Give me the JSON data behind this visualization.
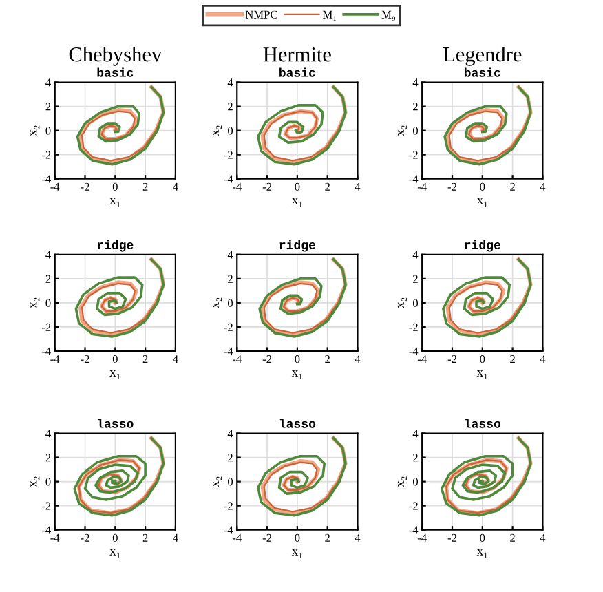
{
  "chart_data": [
    {
      "type": "line",
      "title": "Chebyshev",
      "subtitle": "basic",
      "xlabel": "x₁",
      "ylabel": "x₂",
      "xlim": [
        -4,
        4
      ],
      "ylim": [
        -4,
        4
      ],
      "xticks": [
        -4,
        -2,
        0,
        2,
        4
      ],
      "yticks": [
        -4,
        -2,
        0,
        2,
        4
      ],
      "grid": true,
      "legend": "top",
      "series": [
        {
          "name": "NMPC",
          "color": "#f4a582",
          "x": [
            2.4,
            3.0,
            3.2,
            2.7,
            1.9,
            0.9,
            -0.3,
            -1.5,
            -2.2,
            -2.3,
            -1.8,
            -0.9,
            0.2,
            1.0,
            1.4,
            1.2,
            0.7,
            0.0,
            -0.6,
            -0.9,
            -0.7,
            -0.3,
            0.0,
            0.1,
            0.0
          ],
          "values": [
            3.6,
            2.8,
            1.5,
            0.0,
            -1.4,
            -2.3,
            -2.6,
            -2.3,
            -1.5,
            -0.4,
            0.6,
            1.3,
            1.7,
            1.6,
            1.0,
            0.3,
            -0.4,
            -0.7,
            -0.7,
            -0.3,
            0.2,
            0.4,
            0.3,
            0.1,
            0.0
          ]
        },
        {
          "name": "M₁",
          "color": "#c8643c",
          "x": [
            2.4,
            3.0,
            3.2,
            2.7,
            1.9,
            0.9,
            -0.3,
            -1.5,
            -2.1,
            -2.2,
            -1.7,
            -0.8,
            0.2,
            1.0,
            1.3,
            1.2,
            0.7,
            0.0,
            -0.6,
            -0.9,
            -0.7,
            -0.3,
            0.0,
            0.1,
            0.0
          ],
          "values": [
            3.6,
            2.8,
            1.5,
            0.0,
            -1.4,
            -2.2,
            -2.5,
            -2.2,
            -1.4,
            -0.4,
            0.6,
            1.3,
            1.6,
            1.5,
            1.0,
            0.3,
            -0.4,
            -0.7,
            -0.7,
            -0.3,
            0.2,
            0.4,
            0.3,
            0.1,
            0.0
          ]
        },
        {
          "name": "M₉",
          "color": "#4f8a3c",
          "x": [
            2.4,
            3.0,
            3.2,
            2.8,
            2.0,
            1.0,
            -0.2,
            -1.5,
            -2.3,
            -2.5,
            -2.0,
            -1.0,
            0.2,
            1.2,
            1.6,
            1.5,
            1.0,
            0.2,
            -0.6,
            -1.1,
            -1.0,
            -0.5,
            0.0,
            0.3,
            0.2,
            0.0
          ],
          "values": [
            3.6,
            2.8,
            1.5,
            0.0,
            -1.5,
            -2.4,
            -2.8,
            -2.5,
            -1.6,
            -0.5,
            0.6,
            1.5,
            2.0,
            2.0,
            1.4,
            0.5,
            -0.3,
            -0.8,
            -0.9,
            -0.5,
            0.2,
            0.6,
            0.6,
            0.3,
            -0.1,
            -0.1
          ]
        }
      ]
    },
    {
      "type": "line",
      "title": "Hermite",
      "subtitle": "basic",
      "xlabel": "x₁",
      "ylabel": "x₂",
      "xlim": [
        -4,
        4
      ],
      "ylim": [
        -4,
        4
      ],
      "xticks": [
        -4,
        -2,
        0,
        2,
        4
      ],
      "yticks": [
        -4,
        -2,
        0,
        2,
        4
      ],
      "grid": true,
      "series": [
        {
          "color": "#f4a582",
          "x": [
            2.4,
            3.0,
            3.2,
            2.7,
            1.9,
            0.9,
            -0.3,
            -1.5,
            -2.2,
            -2.3,
            -1.8,
            -0.9,
            0.2,
            1.0,
            1.3,
            1.2,
            0.7,
            0.0,
            -0.5,
            -0.8,
            -0.6,
            -0.2,
            0.1,
            0.1,
            0.0
          ],
          "values": [
            3.6,
            2.8,
            1.5,
            0.0,
            -1.4,
            -2.3,
            -2.6,
            -2.3,
            -1.5,
            -0.4,
            0.6,
            1.3,
            1.6,
            1.5,
            1.0,
            0.3,
            -0.4,
            -0.6,
            -0.6,
            -0.3,
            0.2,
            0.4,
            0.3,
            0.1,
            0.0
          ]
        },
        {
          "color": "#c8643c",
          "x": [
            2.4,
            3.0,
            3.2,
            2.7,
            1.9,
            0.9,
            -0.3,
            -1.5,
            -2.1,
            -2.2,
            -1.7,
            -0.8,
            0.2,
            1.0,
            1.3,
            1.2,
            0.7,
            0.0,
            -0.5,
            -0.8,
            -0.6,
            -0.2,
            0.1,
            0.1,
            0.0
          ],
          "values": [
            3.6,
            2.8,
            1.5,
            0.0,
            -1.4,
            -2.2,
            -2.5,
            -2.2,
            -1.4,
            -0.4,
            0.6,
            1.3,
            1.6,
            1.5,
            1.0,
            0.3,
            -0.4,
            -0.6,
            -0.6,
            -0.3,
            0.2,
            0.4,
            0.3,
            0.1,
            0.0
          ]
        },
        {
          "color": "#4f8a3c",
          "x": [
            2.4,
            3.0,
            3.2,
            2.8,
            2.0,
            1.0,
            -0.2,
            -1.5,
            -2.4,
            -2.6,
            -2.1,
            -1.1,
            0.1,
            1.2,
            1.7,
            1.6,
            1.1,
            0.3,
            -0.6,
            -1.2,
            -1.1,
            -0.6,
            0.0,
            0.4,
            0.3,
            0.0,
            -0.1
          ],
          "values": [
            3.6,
            2.8,
            1.5,
            0.0,
            -1.5,
            -2.4,
            -2.8,
            -2.6,
            -1.7,
            -0.5,
            0.7,
            1.6,
            2.1,
            2.1,
            1.5,
            0.5,
            -0.3,
            -0.9,
            -1.0,
            -0.5,
            0.2,
            0.7,
            0.7,
            0.3,
            -0.1,
            -0.2,
            0.0
          ]
        }
      ]
    },
    {
      "type": "line",
      "title": "Legendre",
      "subtitle": "basic",
      "xlabel": "x₁",
      "ylabel": "x₂",
      "xlim": [
        -4,
        4
      ],
      "ylim": [
        -4,
        4
      ],
      "xticks": [
        -4,
        -2,
        0,
        2,
        4
      ],
      "yticks": [
        -4,
        -2,
        0,
        2,
        4
      ],
      "grid": true,
      "series": [
        {
          "color": "#f4a582",
          "x": [
            2.4,
            3.0,
            3.2,
            2.7,
            1.9,
            0.9,
            -0.3,
            -1.5,
            -2.2,
            -2.3,
            -1.8,
            -0.9,
            0.2,
            1.0,
            1.4,
            1.2,
            0.7,
            0.0,
            -0.6,
            -0.9,
            -0.7,
            -0.3,
            0.0,
            0.1,
            0.0
          ],
          "values": [
            3.6,
            2.8,
            1.5,
            0.0,
            -1.4,
            -2.3,
            -2.6,
            -2.3,
            -1.5,
            -0.4,
            0.6,
            1.3,
            1.7,
            1.6,
            1.0,
            0.3,
            -0.4,
            -0.7,
            -0.7,
            -0.3,
            0.2,
            0.4,
            0.3,
            0.1,
            0.0
          ]
        },
        {
          "color": "#c8643c",
          "x": [
            2.4,
            3.0,
            3.2,
            2.7,
            1.9,
            0.9,
            -0.3,
            -1.5,
            -2.1,
            -2.2,
            -1.7,
            -0.8,
            0.2,
            1.0,
            1.3,
            1.2,
            0.7,
            0.0,
            -0.6,
            -0.9,
            -0.7,
            -0.3,
            0.0,
            0.1,
            0.0
          ],
          "values": [
            3.6,
            2.8,
            1.5,
            0.0,
            -1.4,
            -2.2,
            -2.5,
            -2.2,
            -1.4,
            -0.4,
            0.6,
            1.3,
            1.6,
            1.5,
            1.0,
            0.3,
            -0.4,
            -0.7,
            -0.7,
            -0.3,
            0.2,
            0.4,
            0.3,
            0.1,
            0.0
          ]
        },
        {
          "color": "#4f8a3c",
          "x": [
            2.4,
            3.0,
            3.2,
            2.8,
            2.0,
            1.0,
            -0.2,
            -1.5,
            -2.3,
            -2.5,
            -2.0,
            -1.0,
            0.2,
            1.2,
            1.6,
            1.5,
            1.0,
            0.2,
            -0.6,
            -1.1,
            -1.0,
            -0.5,
            0.0,
            0.3,
            0.2,
            0.0
          ],
          "values": [
            3.6,
            2.8,
            1.5,
            0.0,
            -1.5,
            -2.4,
            -2.8,
            -2.5,
            -1.6,
            -0.5,
            0.6,
            1.5,
            2.0,
            2.0,
            1.4,
            0.5,
            -0.3,
            -0.8,
            -0.9,
            -0.5,
            0.2,
            0.6,
            0.6,
            0.3,
            -0.1,
            -0.1
          ]
        }
      ]
    },
    {
      "type": "line",
      "subtitle": "ridge",
      "xlabel": "x₁",
      "ylabel": "x₂",
      "xlim": [
        -4,
        4
      ],
      "ylim": [
        -4,
        4
      ],
      "xticks": [
        -4,
        -2,
        0,
        2,
        4
      ],
      "yticks": [
        -4,
        -2,
        0,
        2,
        4
      ],
      "grid": true,
      "series": [
        {
          "color": "#f4a582",
          "x": [
            2.4,
            3.0,
            3.2,
            2.7,
            1.9,
            0.9,
            -0.3,
            -1.5,
            -2.2,
            -2.3,
            -1.8,
            -0.9,
            0.2,
            1.0,
            1.4,
            1.2,
            0.7,
            0.0,
            -0.6,
            -0.9,
            -0.7,
            -0.3,
            0.0,
            0.1,
            0.0
          ],
          "values": [
            3.6,
            2.8,
            1.5,
            0.0,
            -1.4,
            -2.3,
            -2.6,
            -2.3,
            -1.5,
            -0.4,
            0.6,
            1.3,
            1.7,
            1.6,
            1.0,
            0.3,
            -0.4,
            -0.7,
            -0.7,
            -0.3,
            0.2,
            0.4,
            0.3,
            0.1,
            0.0
          ]
        },
        {
          "color": "#c8643c",
          "x": [
            2.4,
            3.0,
            3.2,
            2.7,
            1.9,
            0.9,
            -0.3,
            -1.5,
            -2.1,
            -2.2,
            -1.7,
            -0.8,
            0.2,
            1.0,
            1.3,
            1.2,
            0.7,
            0.0,
            -0.6,
            -0.9,
            -0.7,
            -0.3,
            0.0,
            0.1,
            0.0
          ],
          "values": [
            3.6,
            2.8,
            1.5,
            0.0,
            -1.4,
            -2.2,
            -2.5,
            -2.2,
            -1.4,
            -0.4,
            0.6,
            1.3,
            1.6,
            1.5,
            1.0,
            0.3,
            -0.4,
            -0.7,
            -0.7,
            -0.3,
            0.2,
            0.4,
            0.3,
            0.1,
            0.0
          ]
        },
        {
          "color": "#4f8a3c",
          "x": [
            2.4,
            3.0,
            3.2,
            2.8,
            2.0,
            1.0,
            -0.2,
            -1.5,
            -2.4,
            -2.6,
            -2.1,
            -1.1,
            0.2,
            1.3,
            1.8,
            1.7,
            1.1,
            0.2,
            -0.7,
            -1.2,
            -1.1,
            -0.5,
            0.3,
            0.7,
            0.5,
            0.0,
            -0.4,
            -0.4,
            0.0,
            0.1
          ],
          "values": [
            3.6,
            2.8,
            1.5,
            0.0,
            -1.5,
            -2.4,
            -2.8,
            -2.6,
            -1.7,
            -0.5,
            0.7,
            1.6,
            2.1,
            2.1,
            1.5,
            0.5,
            -0.4,
            -0.9,
            -1.0,
            -0.5,
            0.3,
            0.8,
            0.8,
            0.3,
            -0.3,
            -0.5,
            -0.3,
            0.1,
            0.2,
            0.0
          ]
        }
      ]
    },
    {
      "type": "line",
      "subtitle": "ridge",
      "xlabel": "x₁",
      "ylabel": "x₂",
      "xlim": [
        -4,
        4
      ],
      "ylim": [
        -4,
        4
      ],
      "xticks": [
        -4,
        -2,
        0,
        2,
        4
      ],
      "yticks": [
        -4,
        -2,
        0,
        2,
        4
      ],
      "grid": true,
      "series": [
        {
          "color": "#f4a582",
          "x": [
            2.4,
            3.0,
            3.2,
            2.7,
            1.9,
            0.9,
            -0.3,
            -1.5,
            -2.2,
            -2.3,
            -1.8,
            -0.9,
            0.2,
            1.0,
            1.4,
            1.2,
            0.7,
            0.0,
            -0.6,
            -0.9,
            -0.7,
            -0.3,
            0.0,
            0.1,
            0.0
          ],
          "values": [
            3.6,
            2.8,
            1.5,
            0.0,
            -1.4,
            -2.3,
            -2.6,
            -2.3,
            -1.5,
            -0.4,
            0.6,
            1.3,
            1.7,
            1.6,
            1.0,
            0.3,
            -0.4,
            -0.7,
            -0.7,
            -0.3,
            0.2,
            0.4,
            0.3,
            0.1,
            0.0
          ]
        },
        {
          "color": "#c8643c",
          "x": [
            2.4,
            3.0,
            3.2,
            2.7,
            1.9,
            0.9,
            -0.3,
            -1.5,
            -2.1,
            -2.2,
            -1.7,
            -0.8,
            0.2,
            1.0,
            1.3,
            1.2,
            0.7,
            0.0,
            -0.6,
            -0.9,
            -0.7,
            -0.3,
            0.0,
            0.1,
            0.0
          ],
          "values": [
            3.6,
            2.8,
            1.5,
            0.0,
            -1.4,
            -2.2,
            -2.5,
            -2.2,
            -1.4,
            -0.4,
            0.6,
            1.3,
            1.6,
            1.5,
            1.0,
            0.3,
            -0.4,
            -0.7,
            -0.7,
            -0.3,
            0.2,
            0.4,
            0.3,
            0.1,
            0.0
          ]
        },
        {
          "color": "#4f8a3c",
          "x": [
            2.4,
            3.0,
            3.2,
            2.8,
            2.0,
            1.0,
            -0.2,
            -1.5,
            -2.3,
            -2.5,
            -2.0,
            -1.0,
            0.2,
            1.2,
            1.6,
            1.5,
            1.0,
            0.2,
            -0.6,
            -1.1,
            -1.0,
            -0.5,
            0.0,
            0.3,
            0.2,
            0.0
          ],
          "values": [
            3.6,
            2.8,
            1.5,
            0.0,
            -1.5,
            -2.4,
            -2.8,
            -2.5,
            -1.6,
            -0.5,
            0.6,
            1.5,
            2.0,
            2.0,
            1.4,
            0.5,
            -0.3,
            -0.8,
            -0.9,
            -0.5,
            0.2,
            0.6,
            0.6,
            0.3,
            -0.1,
            -0.1
          ]
        }
      ]
    },
    {
      "type": "line",
      "subtitle": "ridge",
      "xlabel": "x₁",
      "ylabel": "x₂",
      "xlim": [
        -4,
        4
      ],
      "ylim": [
        -4,
        4
      ],
      "xticks": [
        -4,
        -2,
        0,
        2,
        4
      ],
      "yticks": [
        -4,
        -2,
        0,
        2,
        4
      ],
      "grid": true,
      "series": [
        {
          "color": "#f4a582",
          "x": [
            2.4,
            3.0,
            3.2,
            2.7,
            1.9,
            0.9,
            -0.3,
            -1.5,
            -2.2,
            -2.3,
            -1.8,
            -0.9,
            0.2,
            1.0,
            1.4,
            1.2,
            0.7,
            0.0,
            -0.6,
            -0.9,
            -0.7,
            -0.3,
            0.0,
            0.1,
            0.0
          ],
          "values": [
            3.6,
            2.8,
            1.5,
            0.0,
            -1.4,
            -2.3,
            -2.6,
            -2.3,
            -1.5,
            -0.4,
            0.6,
            1.3,
            1.7,
            1.6,
            1.0,
            0.3,
            -0.4,
            -0.7,
            -0.7,
            -0.3,
            0.2,
            0.4,
            0.3,
            0.1,
            0.0
          ]
        },
        {
          "color": "#c8643c",
          "x": [
            2.4,
            3.0,
            3.2,
            2.7,
            1.9,
            0.9,
            -0.3,
            -1.5,
            -2.1,
            -2.2,
            -1.7,
            -0.8,
            0.2,
            1.0,
            1.3,
            1.2,
            0.7,
            0.0,
            -0.6,
            -0.9,
            -0.7,
            -0.3,
            0.0,
            0.1,
            0.0
          ],
          "values": [
            3.6,
            2.8,
            1.5,
            0.0,
            -1.4,
            -2.2,
            -2.5,
            -2.2,
            -1.4,
            -0.4,
            0.6,
            1.3,
            1.6,
            1.5,
            1.0,
            0.3,
            -0.4,
            -0.7,
            -0.7,
            -0.3,
            0.2,
            0.4,
            0.3,
            0.1,
            0.0
          ]
        },
        {
          "color": "#4f8a3c",
          "x": [
            2.4,
            3.0,
            3.2,
            2.8,
            2.0,
            1.0,
            -0.2,
            -1.5,
            -2.4,
            -2.6,
            -2.1,
            -1.1,
            0.2,
            1.3,
            1.8,
            1.7,
            1.1,
            0.2,
            -0.7,
            -1.2,
            -1.1,
            -0.5,
            0.3,
            0.7,
            0.5,
            0.0,
            -0.4,
            -0.4,
            0.0,
            0.1
          ],
          "values": [
            3.6,
            2.8,
            1.5,
            0.0,
            -1.5,
            -2.4,
            -2.8,
            -2.6,
            -1.7,
            -0.5,
            0.7,
            1.6,
            2.1,
            2.1,
            1.5,
            0.5,
            -0.4,
            -0.9,
            -1.0,
            -0.5,
            0.3,
            0.8,
            0.8,
            0.3,
            -0.3,
            -0.5,
            -0.3,
            0.1,
            0.2,
            0.0
          ]
        }
      ]
    },
    {
      "type": "line",
      "subtitle": "lasso",
      "xlabel": "x₁",
      "ylabel": "x₂",
      "xlim": [
        -4,
        4
      ],
      "ylim": [
        -4,
        4
      ],
      "xticks": [
        -4,
        -2,
        0,
        2,
        4
      ],
      "yticks": [
        -4,
        -2,
        0,
        2,
        4
      ],
      "grid": true,
      "series": [
        {
          "color": "#f4a582",
          "x": [
            2.4,
            3.0,
            3.2,
            2.7,
            1.9,
            0.9,
            -0.3,
            -1.6,
            -2.3,
            -2.4,
            -1.9,
            -0.9,
            0.3,
            1.2,
            1.6,
            1.4,
            0.8,
            0.0,
            -0.8,
            -1.1,
            -0.9,
            -0.4,
            0.2,
            0.4,
            0.2,
            0.0
          ],
          "values": [
            3.6,
            2.8,
            1.5,
            0.0,
            -1.4,
            -2.3,
            -2.6,
            -2.4,
            -1.5,
            -0.4,
            0.6,
            1.4,
            1.8,
            1.7,
            1.1,
            0.3,
            -0.5,
            -0.9,
            -0.8,
            -0.3,
            0.3,
            0.6,
            0.5,
            0.1,
            -0.2,
            0.0
          ]
        },
        {
          "color": "#c8643c",
          "x": [
            2.4,
            3.0,
            3.2,
            2.7,
            1.9,
            0.9,
            -0.3,
            -1.6,
            -2.3,
            -2.4,
            -1.9,
            -0.9,
            0.3,
            1.2,
            1.6,
            1.4,
            0.8,
            0.0,
            -0.8,
            -1.1,
            -0.9,
            -0.4,
            0.2,
            0.4,
            0.2,
            0.0
          ],
          "values": [
            3.6,
            2.8,
            1.5,
            0.0,
            -1.4,
            -2.3,
            -2.6,
            -2.4,
            -1.5,
            -0.4,
            0.6,
            1.4,
            1.8,
            1.7,
            1.1,
            0.3,
            -0.5,
            -0.9,
            -0.8,
            -0.3,
            0.3,
            0.6,
            0.5,
            0.1,
            -0.2,
            0.0
          ]
        },
        {
          "color": "#4f8a3c",
          "x": [
            2.4,
            3.0,
            3.2,
            2.8,
            2.0,
            1.0,
            -0.2,
            -1.5,
            -2.4,
            -2.7,
            -2.2,
            -1.2,
            0.2,
            1.4,
            2.0,
            2.0,
            1.4,
            0.5,
            -0.6,
            -1.5,
            -2.0,
            -1.8,
            -1.1,
            0.0,
            1.0,
            1.5,
            1.3,
            0.6,
            -0.3,
            -1.0,
            -1.3,
            -1.0,
            -0.3,
            0.5,
            0.9,
            0.8,
            0.3,
            -0.3,
            -0.6,
            -0.5,
            -0.1,
            0.3,
            0.4,
            0.1,
            -0.2,
            -0.2,
            0.0
          ],
          "values": [
            3.6,
            2.8,
            1.5,
            0.0,
            -1.5,
            -2.4,
            -2.8,
            -2.6,
            -1.8,
            -0.6,
            0.6,
            1.6,
            2.1,
            2.1,
            1.5,
            0.5,
            -0.5,
            -1.2,
            -1.5,
            -1.3,
            -0.6,
            0.3,
            1.0,
            1.4,
            1.3,
            0.7,
            0.0,
            -0.6,
            -0.9,
            -0.8,
            -0.3,
            0.3,
            0.8,
            0.9,
            0.5,
            0.0,
            -0.4,
            -0.5,
            -0.3,
            0.1,
            0.4,
            0.3,
            0.0,
            -0.2,
            -0.1,
            0.1,
            0.0
          ]
        }
      ]
    },
    {
      "type": "line",
      "subtitle": "lasso",
      "xlabel": "x₁",
      "ylabel": "x₂",
      "xlim": [
        -4,
        4
      ],
      "ylim": [
        -4,
        4
      ],
      "xticks": [
        -4,
        -2,
        0,
        2,
        4
      ],
      "yticks": [
        -4,
        -2,
        0,
        2,
        4
      ],
      "grid": true,
      "series": [
        {
          "color": "#f4a582",
          "x": [
            2.4,
            3.0,
            3.2,
            2.7,
            1.9,
            0.9,
            -0.3,
            -1.5,
            -2.2,
            -2.3,
            -1.8,
            -0.9,
            0.2,
            1.0,
            1.4,
            1.2,
            0.7,
            0.0,
            -0.6,
            -0.9,
            -0.7,
            -0.3,
            0.0,
            0.1,
            0.0
          ],
          "values": [
            3.6,
            2.8,
            1.5,
            0.0,
            -1.4,
            -2.3,
            -2.6,
            -2.3,
            -1.5,
            -0.4,
            0.6,
            1.3,
            1.7,
            1.6,
            1.0,
            0.3,
            -0.4,
            -0.7,
            -0.7,
            -0.3,
            0.2,
            0.4,
            0.3,
            0.1,
            0.0
          ]
        },
        {
          "color": "#c8643c",
          "x": [
            2.4,
            3.0,
            3.2,
            2.7,
            1.9,
            0.9,
            -0.3,
            -1.5,
            -2.1,
            -2.2,
            -1.7,
            -0.8,
            0.2,
            1.0,
            1.3,
            1.2,
            0.7,
            0.0,
            -0.6,
            -0.9,
            -0.7,
            -0.3,
            0.0,
            0.1,
            0.0
          ],
          "values": [
            3.6,
            2.8,
            1.5,
            0.0,
            -1.4,
            -2.2,
            -2.5,
            -2.2,
            -1.4,
            -0.4,
            0.6,
            1.3,
            1.6,
            1.5,
            1.0,
            0.3,
            -0.4,
            -0.7,
            -0.7,
            -0.3,
            0.2,
            0.4,
            0.3,
            0.1,
            0.0
          ]
        },
        {
          "color": "#4f8a3c",
          "x": [
            2.4,
            3.0,
            3.2,
            2.8,
            2.0,
            1.0,
            -0.2,
            -1.5,
            -2.4,
            -2.6,
            -2.1,
            -1.1,
            0.2,
            1.3,
            1.8,
            1.7,
            1.1,
            0.2,
            -0.7,
            -1.2,
            -1.1,
            -0.5,
            0.3,
            0.7,
            0.5,
            0.0,
            -0.4,
            -0.4,
            0.0,
            0.1
          ],
          "values": [
            3.6,
            2.8,
            1.5,
            0.0,
            -1.5,
            -2.4,
            -2.8,
            -2.6,
            -1.7,
            -0.5,
            0.7,
            1.6,
            2.1,
            2.1,
            1.5,
            0.5,
            -0.4,
            -0.9,
            -1.0,
            -0.5,
            0.3,
            0.8,
            0.8,
            0.3,
            -0.3,
            -0.5,
            -0.3,
            0.1,
            0.2,
            0.0
          ]
        }
      ]
    },
    {
      "type": "line",
      "subtitle": "lasso",
      "xlabel": "x₁",
      "ylabel": "x₂",
      "xlim": [
        -4,
        4
      ],
      "ylim": [
        -4,
        4
      ],
      "xticks": [
        -4,
        -2,
        0,
        2,
        4
      ],
      "yticks": [
        -4,
        -2,
        0,
        2,
        4
      ],
      "grid": true,
      "series": [
        {
          "color": "#f4a582",
          "x": [
            2.4,
            3.0,
            3.2,
            2.7,
            1.9,
            0.9,
            -0.3,
            -1.6,
            -2.3,
            -2.4,
            -1.9,
            -0.9,
            0.3,
            1.2,
            1.6,
            1.4,
            0.8,
            0.0,
            -0.8,
            -1.1,
            -0.9,
            -0.4,
            0.2,
            0.4,
            0.2,
            0.0
          ],
          "values": [
            3.6,
            2.8,
            1.5,
            0.0,
            -1.4,
            -2.3,
            -2.6,
            -2.4,
            -1.5,
            -0.4,
            0.6,
            1.4,
            1.8,
            1.7,
            1.1,
            0.3,
            -0.5,
            -0.9,
            -0.8,
            -0.3,
            0.3,
            0.6,
            0.5,
            0.1,
            -0.2,
            0.0
          ]
        },
        {
          "color": "#c8643c",
          "x": [
            2.4,
            3.0,
            3.2,
            2.7,
            1.9,
            0.9,
            -0.3,
            -1.6,
            -2.3,
            -2.4,
            -1.9,
            -0.9,
            0.3,
            1.2,
            1.6,
            1.4,
            0.8,
            0.0,
            -0.8,
            -1.1,
            -0.9,
            -0.4,
            0.2,
            0.4,
            0.2,
            0.0
          ],
          "values": [
            3.6,
            2.8,
            1.5,
            0.0,
            -1.4,
            -2.3,
            -2.6,
            -2.4,
            -1.5,
            -0.4,
            0.6,
            1.4,
            1.8,
            1.7,
            1.1,
            0.3,
            -0.5,
            -0.9,
            -0.8,
            -0.3,
            0.3,
            0.6,
            0.5,
            0.1,
            -0.2,
            0.0
          ]
        },
        {
          "color": "#4f8a3c",
          "x": [
            2.4,
            3.0,
            3.2,
            2.8,
            2.0,
            1.0,
            -0.2,
            -1.5,
            -2.4,
            -2.7,
            -2.2,
            -1.2,
            0.2,
            1.4,
            2.0,
            2.0,
            1.4,
            0.5,
            -0.6,
            -1.5,
            -2.0,
            -1.8,
            -1.1,
            0.0,
            1.0,
            1.5,
            1.3,
            0.6,
            -0.3,
            -1.0,
            -1.3,
            -1.0,
            -0.3,
            0.5,
            0.9,
            0.8,
            0.3,
            -0.3,
            -0.6,
            -0.5,
            -0.1,
            0.3,
            0.4,
            0.1,
            -0.2,
            -0.2,
            0.0
          ],
          "values": [
            3.6,
            2.8,
            1.5,
            0.0,
            -1.5,
            -2.4,
            -2.8,
            -2.6,
            -1.8,
            -0.6,
            0.6,
            1.6,
            2.1,
            2.1,
            1.5,
            0.5,
            -0.5,
            -1.2,
            -1.5,
            -1.3,
            -0.6,
            0.3,
            1.0,
            1.4,
            1.3,
            0.7,
            0.0,
            -0.6,
            -0.9,
            -0.8,
            -0.3,
            0.3,
            0.8,
            0.9,
            0.5,
            0.0,
            -0.4,
            -0.5,
            -0.3,
            0.1,
            0.4,
            0.3,
            0.0,
            -0.2,
            -0.1,
            0.1,
            0.0
          ]
        }
      ]
    }
  ]
}
